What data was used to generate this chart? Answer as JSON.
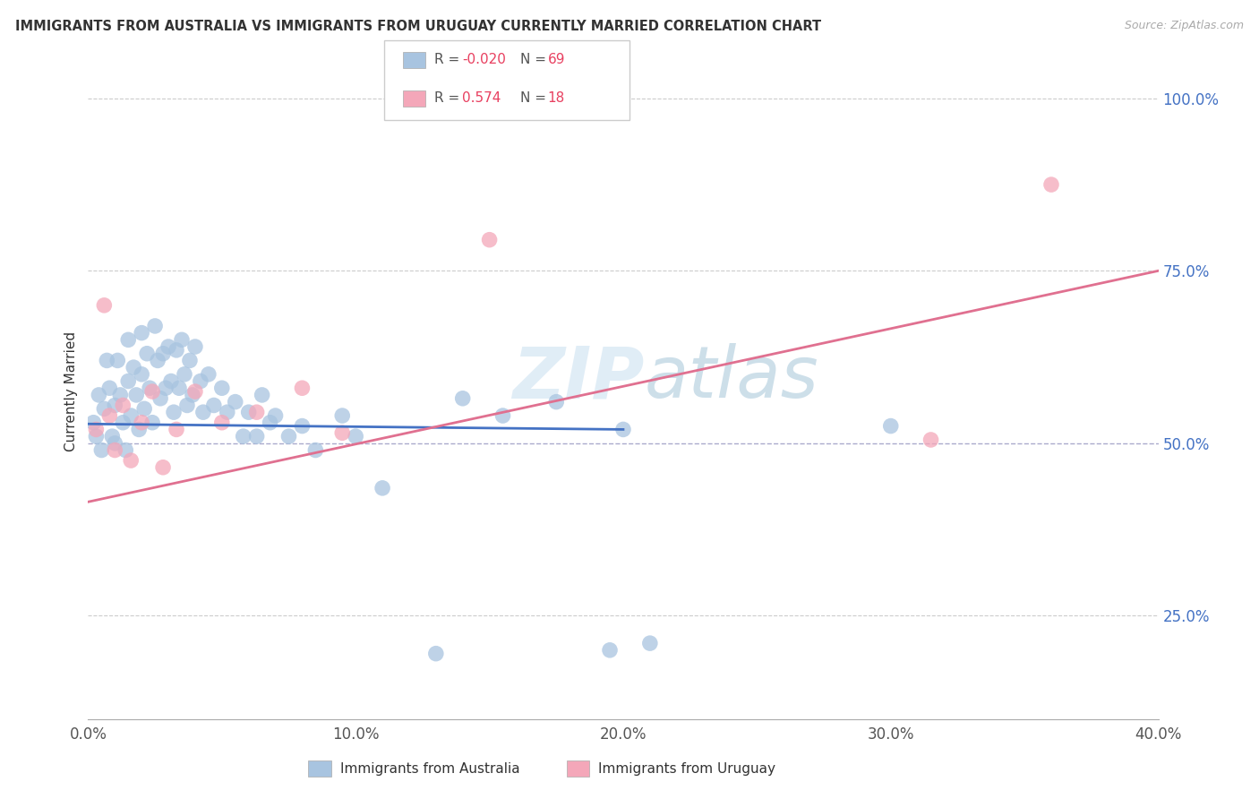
{
  "title": "IMMIGRANTS FROM AUSTRALIA VS IMMIGRANTS FROM URUGUAY CURRENTLY MARRIED CORRELATION CHART",
  "source": "Source: ZipAtlas.com",
  "ylabel": "Currently Married",
  "xlim": [
    0.0,
    0.4
  ],
  "ylim": [
    0.1,
    1.05
  ],
  "ytick_labels": [
    "25.0%",
    "50.0%",
    "75.0%",
    "100.0%"
  ],
  "ytick_values": [
    0.25,
    0.5,
    0.75,
    1.0
  ],
  "xtick_labels": [
    "0.0%",
    "10.0%",
    "20.0%",
    "30.0%",
    "40.0%"
  ],
  "xtick_values": [
    0.0,
    0.1,
    0.2,
    0.3,
    0.4
  ],
  "australia_color": "#a8c4e0",
  "uruguay_color": "#f4a7b9",
  "australia_line_color": "#4472c4",
  "uruguay_line_color": "#e07090",
  "legend_australia": "Immigrants from Australia",
  "legend_uruguay": "Immigrants from Uruguay",
  "aus_x": [
    0.002,
    0.003,
    0.004,
    0.005,
    0.006,
    0.007,
    0.008,
    0.009,
    0.01,
    0.01,
    0.011,
    0.012,
    0.013,
    0.014,
    0.015,
    0.015,
    0.016,
    0.017,
    0.018,
    0.019,
    0.02,
    0.02,
    0.021,
    0.022,
    0.023,
    0.024,
    0.025,
    0.026,
    0.027,
    0.028,
    0.029,
    0.03,
    0.031,
    0.032,
    0.033,
    0.034,
    0.035,
    0.036,
    0.037,
    0.038,
    0.039,
    0.04,
    0.042,
    0.043,
    0.045,
    0.047,
    0.05,
    0.052,
    0.055,
    0.058,
    0.06,
    0.063,
    0.065,
    0.068,
    0.07,
    0.075,
    0.08,
    0.085,
    0.095,
    0.1,
    0.11,
    0.13,
    0.14,
    0.155,
    0.175,
    0.195,
    0.2,
    0.21,
    0.3
  ],
  "aus_y": [
    0.53,
    0.51,
    0.57,
    0.49,
    0.55,
    0.62,
    0.58,
    0.51,
    0.555,
    0.5,
    0.62,
    0.57,
    0.53,
    0.49,
    0.65,
    0.59,
    0.54,
    0.61,
    0.57,
    0.52,
    0.66,
    0.6,
    0.55,
    0.63,
    0.58,
    0.53,
    0.67,
    0.62,
    0.565,
    0.63,
    0.58,
    0.64,
    0.59,
    0.545,
    0.635,
    0.58,
    0.65,
    0.6,
    0.555,
    0.62,
    0.57,
    0.64,
    0.59,
    0.545,
    0.6,
    0.555,
    0.58,
    0.545,
    0.56,
    0.51,
    0.545,
    0.51,
    0.57,
    0.53,
    0.54,
    0.51,
    0.525,
    0.49,
    0.54,
    0.51,
    0.435,
    0.195,
    0.565,
    0.54,
    0.56,
    0.2,
    0.52,
    0.21,
    0.525
  ],
  "uru_x": [
    0.003,
    0.006,
    0.008,
    0.01,
    0.013,
    0.016,
    0.02,
    0.024,
    0.028,
    0.033,
    0.04,
    0.05,
    0.063,
    0.08,
    0.095,
    0.15,
    0.315,
    0.36
  ],
  "uru_y": [
    0.52,
    0.7,
    0.54,
    0.49,
    0.555,
    0.475,
    0.53,
    0.575,
    0.465,
    0.52,
    0.575,
    0.53,
    0.545,
    0.58,
    0.515,
    0.795,
    0.505,
    0.875
  ],
  "aus_line_x": [
    0.0,
    0.2
  ],
  "aus_line_y": [
    0.528,
    0.52
  ],
  "uru_line_x": [
    0.0,
    0.4
  ],
  "uru_line_y": [
    0.415,
    0.75
  ]
}
